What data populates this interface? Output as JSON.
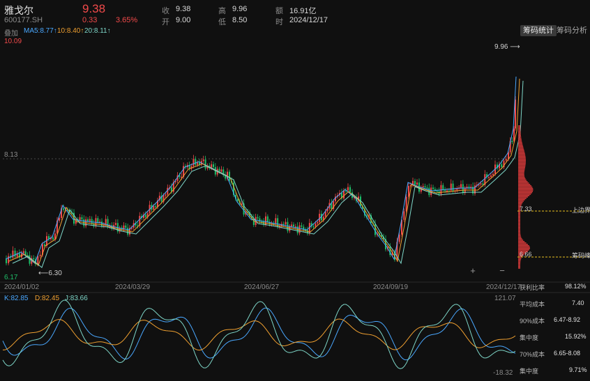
{
  "header": {
    "name": "雅戈尔",
    "code": "600177.SH",
    "price": "9.38",
    "change": "0.33",
    "change_pct": "3.65%",
    "stats": [
      {
        "label": "收",
        "value": "9.38"
      },
      {
        "label": "高",
        "value": "9.96"
      },
      {
        "label": "额",
        "value": "16.91亿"
      },
      {
        "label": "开",
        "value": "9.00"
      },
      {
        "label": "低",
        "value": "8.50"
      },
      {
        "label": "时",
        "value": "2024/12/17"
      }
    ]
  },
  "ma_row": {
    "overlay": "叠加",
    "ma5": "MA5:8.77↑",
    "ma10": "10:8.40↑",
    "ma20": "20:8.11↑"
  },
  "tabs": {
    "active": "筹码统计",
    "inactive": "筹码分析"
  },
  "main_chart": {
    "y_top": "10.09",
    "y_mid": "8.13",
    "y_bottom": "6.17",
    "high_label": "9.96",
    "low_label": "6.30",
    "dates": [
      "2024/01/02",
      "2024/03/29",
      "2024/06/27",
      "2024/09/19",
      "2024/12/17"
    ],
    "chip_upper_label": "上边界",
    "chip_upper_value": "7.33",
    "chip_peak_label": "筹码峰",
    "chip_peak_value": "6.66",
    "plus": "+",
    "minus": "−"
  },
  "chip_stats": [
    {
      "label": "获利比率",
      "value": "98.12%"
    },
    {
      "label": "平均成本",
      "value": "7.40"
    },
    {
      "label": "90%成本",
      "value": "6.47-8.92"
    },
    {
      "label": "集中度",
      "value": "15.92%"
    },
    {
      "label": "70%成本",
      "value": "6.65-8.08"
    },
    {
      "label": "集中度",
      "value": "9.71%"
    }
  ],
  "kdj": {
    "k": "K:82.85",
    "d": "D:82.45",
    "j": "J:83.66",
    "top": "121.07",
    "bottom": "-18.32"
  },
  "colors": {
    "up": "#f24a4a",
    "down": "#1fbf6a",
    "ma5": "#4aa8ff",
    "ma10": "#f0a030",
    "ma20": "#7ed6c8"
  }
}
